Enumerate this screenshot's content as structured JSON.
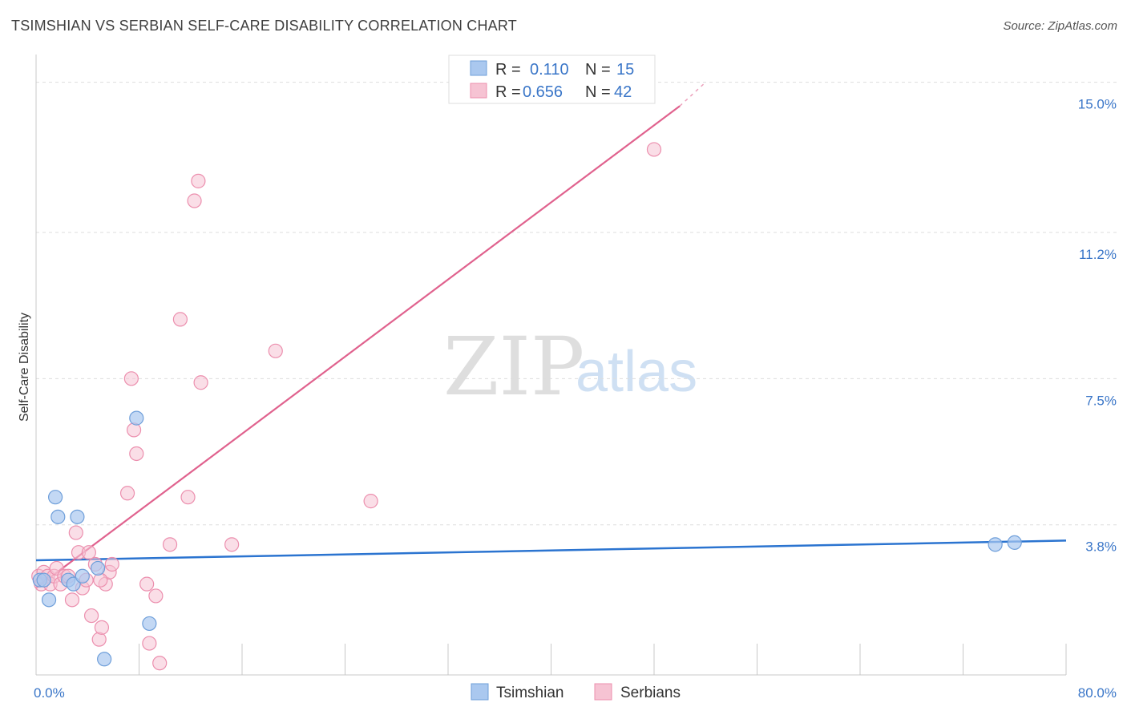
{
  "title": "TSIMSHIAN VS SERBIAN SELF-CARE DISABILITY CORRELATION CHART",
  "source": "Source: ZipAtlas.com",
  "watermark": {
    "zip": "ZIP",
    "atlas": "atlas"
  },
  "colors": {
    "tsimshian_fill": "#aac8ef",
    "tsimshian_stroke": "#6f9fda",
    "tsimshian_line": "#2b74d0",
    "serbian_fill": "#f6c3d3",
    "serbian_stroke": "#ec8fae",
    "serbian_line": "#e0628e",
    "grid": "#dddddd",
    "axis_text": "#3a76c8"
  },
  "legend": {
    "rows": [
      {
        "r_label": "R =",
        "r_value": "0.110",
        "n_label": "N =",
        "n_value": "15"
      },
      {
        "r_label": "R =",
        "r_value": "0.656",
        "n_label": "N =",
        "n_value": "42"
      }
    ]
  },
  "bottom_legend": [
    "Tsimshian",
    "Serbians"
  ],
  "chart_data": {
    "type": "scatter",
    "title": "TSIMSHIAN VS SERBIAN SELF-CARE DISABILITY CORRELATION CHART",
    "xlabel": "",
    "ylabel": "Self-Care Disability",
    "xlim": [
      0,
      80
    ],
    "ylim": [
      0,
      15.5
    ],
    "x_tick_labels": [
      "0.0%",
      "80.0%"
    ],
    "y_ticks": [
      3.8,
      7.5,
      11.2,
      15.0
    ],
    "y_tick_labels": [
      "3.8%",
      "7.5%",
      "11.2%",
      "15.0%"
    ],
    "grid": true,
    "legend_position": "top-center",
    "series": [
      {
        "name": "Tsimshian",
        "r": 0.11,
        "n": 15,
        "points": [
          [
            0.3,
            2.4
          ],
          [
            0.6,
            2.4
          ],
          [
            1.0,
            1.9
          ],
          [
            1.5,
            4.5
          ],
          [
            1.7,
            4.0
          ],
          [
            2.5,
            2.4
          ],
          [
            2.9,
            2.3
          ],
          [
            3.2,
            4.0
          ],
          [
            3.6,
            2.5
          ],
          [
            4.8,
            2.7
          ],
          [
            5.3,
            0.4
          ],
          [
            7.8,
            6.5
          ],
          [
            8.8,
            1.3
          ],
          [
            74.5,
            3.3
          ],
          [
            76.0,
            3.35
          ]
        ],
        "trend": {
          "x0": 0,
          "y0": 2.9,
          "x1": 80,
          "y1": 3.4
        }
      },
      {
        "name": "Serbians",
        "r": 0.656,
        "n": 42,
        "points": [
          [
            0.2,
            2.5
          ],
          [
            0.4,
            2.3
          ],
          [
            0.6,
            2.6
          ],
          [
            0.9,
            2.5
          ],
          [
            1.1,
            2.3
          ],
          [
            1.4,
            2.5
          ],
          [
            1.6,
            2.7
          ],
          [
            1.9,
            2.3
          ],
          [
            2.2,
            2.5
          ],
          [
            2.5,
            2.5
          ],
          [
            2.8,
            1.9
          ],
          [
            3.1,
            3.6
          ],
          [
            3.3,
            3.1
          ],
          [
            3.6,
            2.2
          ],
          [
            3.9,
            2.4
          ],
          [
            4.1,
            3.1
          ],
          [
            4.3,
            1.5
          ],
          [
            4.6,
            2.8
          ],
          [
            4.9,
            0.9
          ],
          [
            5.1,
            1.2
          ],
          [
            5.4,
            2.3
          ],
          [
            5.7,
            2.6
          ],
          [
            5.9,
            2.8
          ],
          [
            7.1,
            4.6
          ],
          [
            7.4,
            7.5
          ],
          [
            7.6,
            6.2
          ],
          [
            7.8,
            5.6
          ],
          [
            8.6,
            2.3
          ],
          [
            8.8,
            0.8
          ],
          [
            9.3,
            2.0
          ],
          [
            9.6,
            0.3
          ],
          [
            10.4,
            3.3
          ],
          [
            11.2,
            9.0
          ],
          [
            11.8,
            4.5
          ],
          [
            12.3,
            12.0
          ],
          [
            12.6,
            12.5
          ],
          [
            12.8,
            7.4
          ],
          [
            15.2,
            3.3
          ],
          [
            18.6,
            8.2
          ],
          [
            26.0,
            4.4
          ],
          [
            48.0,
            13.3
          ],
          [
            5.0,
            2.4
          ]
        ],
        "trend": {
          "x0": 0,
          "y0": 2.2,
          "x1": 50,
          "y1": 14.4,
          "dash_x1": 52,
          "dash_y1": 15.0
        }
      }
    ]
  }
}
